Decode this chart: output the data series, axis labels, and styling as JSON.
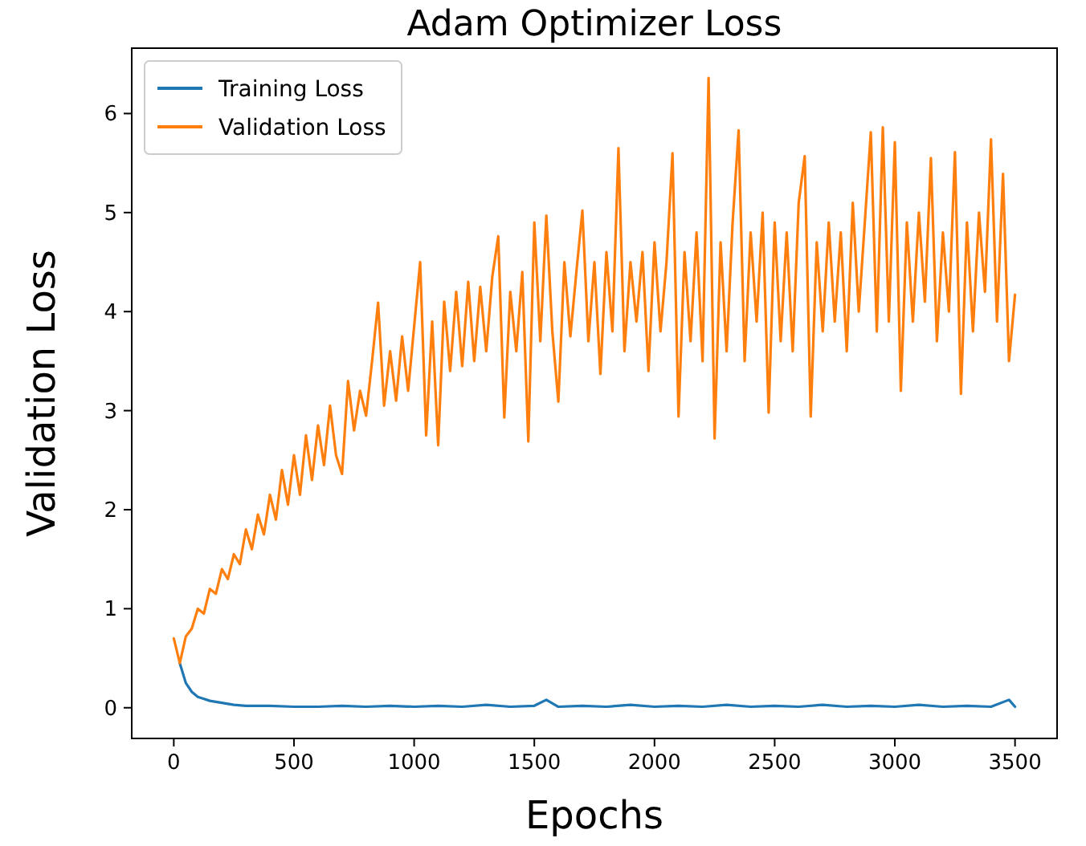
{
  "chart_data": {
    "type": "line",
    "title": "Adam Optimizer Loss",
    "xlabel": "Epochs",
    "ylabel": "Validation Loss",
    "xlim": [
      -175,
      3675
    ],
    "xticks": [
      0,
      500,
      1000,
      1500,
      2000,
      2500,
      3000,
      3500
    ],
    "ylim": [
      -0.31,
      6.66
    ],
    "yticks": [
      0,
      1,
      2,
      3,
      4,
      5,
      6
    ],
    "grid": false,
    "legend": "top left",
    "marker": "none",
    "line_style": "solid",
    "series": [
      {
        "name": "Training Loss",
        "color": "#1f77b4",
        "x": [
          25,
          50,
          75,
          100,
          150,
          200,
          250,
          300,
          400,
          500,
          600,
          700,
          800,
          900,
          1000,
          1100,
          1200,
          1300,
          1400,
          1500,
          1550,
          1600,
          1700,
          1800,
          1900,
          2000,
          2100,
          2200,
          2300,
          2400,
          2500,
          2600,
          2700,
          2800,
          2900,
          3000,
          3100,
          3200,
          3300,
          3400,
          3475,
          3500
        ],
        "values": [
          0.45,
          0.25,
          0.16,
          0.11,
          0.07,
          0.05,
          0.03,
          0.02,
          0.02,
          0.01,
          0.01,
          0.02,
          0.01,
          0.02,
          0.01,
          0.02,
          0.01,
          0.03,
          0.01,
          0.02,
          0.08,
          0.01,
          0.02,
          0.01,
          0.03,
          0.01,
          0.02,
          0.01,
          0.03,
          0.01,
          0.02,
          0.01,
          0.03,
          0.01,
          0.02,
          0.01,
          0.03,
          0.01,
          0.02,
          0.01,
          0.08,
          0.01
        ]
      },
      {
        "name": "Validation Loss",
        "color": "#ff7f0e",
        "x": [
          0,
          25,
          50,
          75,
          100,
          125,
          150,
          175,
          200,
          225,
          250,
          275,
          300,
          325,
          350,
          375,
          400,
          425,
          450,
          475,
          500,
          525,
          550,
          575,
          600,
          625,
          650,
          675,
          700,
          725,
          750,
          775,
          800,
          825,
          850,
          875,
          900,
          925,
          950,
          975,
          1000,
          1025,
          1050,
          1075,
          1100,
          1125,
          1150,
          1175,
          1200,
          1225,
          1250,
          1275,
          1300,
          1325,
          1350,
          1375,
          1400,
          1425,
          1450,
          1475,
          1500,
          1525,
          1550,
          1575,
          1600,
          1625,
          1650,
          1675,
          1700,
          1725,
          1750,
          1775,
          1800,
          1825,
          1850,
          1875,
          1900,
          1925,
          1950,
          1975,
          2000,
          2025,
          2050,
          2075,
          2100,
          2125,
          2150,
          2175,
          2200,
          2225,
          2250,
          2275,
          2300,
          2325,
          2350,
          2375,
          2400,
          2425,
          2450,
          2475,
          2500,
          2525,
          2550,
          2575,
          2600,
          2625,
          2650,
          2675,
          2700,
          2725,
          2750,
          2775,
          2800,
          2825,
          2850,
          2875,
          2900,
          2925,
          2950,
          2975,
          3000,
          3025,
          3050,
          3075,
          3100,
          3125,
          3150,
          3175,
          3200,
          3225,
          3250,
          3275,
          3300,
          3325,
          3350,
          3375,
          3400,
          3425,
          3450,
          3475,
          3500
        ],
        "values": [
          0.7,
          0.45,
          0.72,
          0.8,
          1.0,
          0.95,
          1.2,
          1.15,
          1.4,
          1.3,
          1.55,
          1.45,
          1.8,
          1.6,
          1.95,
          1.75,
          2.15,
          1.9,
          2.4,
          2.05,
          2.55,
          2.15,
          2.75,
          2.3,
          2.85,
          2.45,
          3.05,
          2.55,
          2.36,
          3.3,
          2.8,
          3.2,
          2.95,
          3.5,
          4.09,
          3.05,
          3.6,
          3.1,
          3.75,
          3.2,
          3.85,
          4.5,
          2.75,
          3.9,
          2.65,
          4.1,
          3.4,
          4.2,
          3.45,
          4.3,
          3.5,
          4.25,
          3.6,
          4.35,
          4.76,
          2.93,
          4.2,
          3.6,
          4.4,
          2.69,
          4.9,
          3.7,
          4.97,
          3.8,
          3.09,
          4.5,
          3.75,
          4.4,
          5.02,
          3.7,
          4.5,
          3.37,
          4.6,
          3.8,
          5.65,
          3.6,
          4.5,
          3.9,
          4.6,
          3.4,
          4.7,
          3.8,
          4.5,
          5.6,
          2.94,
          4.6,
          3.7,
          4.8,
          3.5,
          6.36,
          2.72,
          4.7,
          3.6,
          4.9,
          5.83,
          3.5,
          4.8,
          3.9,
          5.0,
          2.98,
          4.9,
          3.7,
          4.8,
          3.6,
          5.1,
          5.57,
          2.94,
          4.7,
          3.8,
          4.9,
          3.9,
          4.8,
          3.6,
          5.1,
          4.0,
          4.9,
          5.81,
          3.8,
          5.86,
          3.9,
          5.71,
          3.2,
          4.9,
          3.9,
          5.0,
          4.1,
          5.55,
          3.7,
          4.8,
          4.0,
          5.61,
          3.17,
          4.9,
          3.8,
          5.0,
          4.2,
          5.74,
          3.9,
          5.39,
          3.5,
          4.17
        ]
      }
    ]
  }
}
